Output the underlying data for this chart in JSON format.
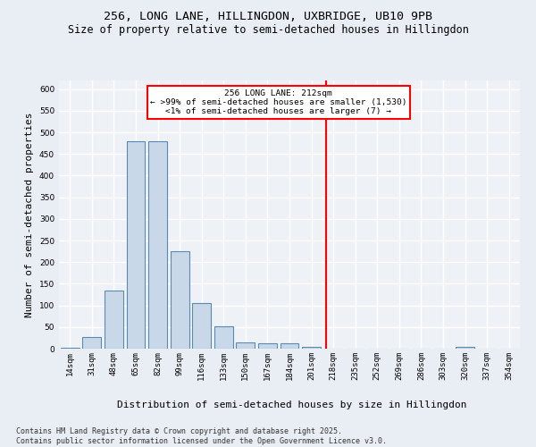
{
  "title_line1": "256, LONG LANE, HILLINGDON, UXBRIDGE, UB10 9PB",
  "title_line2": "Size of property relative to semi-detached houses in Hillingdon",
  "xlabel": "Distribution of semi-detached houses by size in Hillingdon",
  "ylabel": "Number of semi-detached properties",
  "footer": "Contains HM Land Registry data © Crown copyright and database right 2025.\nContains public sector information licensed under the Open Government Licence v3.0.",
  "categories": [
    "14sqm",
    "31sqm",
    "48sqm",
    "65sqm",
    "82sqm",
    "99sqm",
    "116sqm",
    "133sqm",
    "150sqm",
    "167sqm",
    "184sqm",
    "201sqm",
    "218sqm",
    "235sqm",
    "252sqm",
    "269sqm",
    "286sqm",
    "303sqm",
    "320sqm",
    "337sqm",
    "354sqm"
  ],
  "values": [
    2,
    27,
    135,
    480,
    480,
    225,
    105,
    52,
    14,
    12,
    12,
    5,
    0,
    1,
    0,
    0,
    0,
    0,
    4,
    0,
    1
  ],
  "bar_color": "#c8d8e8",
  "bar_edge_color": "#5a8ab0",
  "vline_color": "red",
  "annotation_title": "256 LONG LANE: 212sqm",
  "annotation_line2": "← >99% of semi-detached houses are smaller (1,530)",
  "annotation_line3": "<1% of semi-detached houses are larger (7) →",
  "ylim": [
    0,
    620
  ],
  "yticks": [
    0,
    50,
    100,
    150,
    200,
    250,
    300,
    350,
    400,
    450,
    500,
    550,
    600
  ],
  "bg_color": "#e8eef4",
  "plot_bg_color": "#eef2f7",
  "grid_color": "white",
  "title_fontsize": 9.5,
  "subtitle_fontsize": 8.5,
  "axis_label_fontsize": 8,
  "tick_fontsize": 6.5,
  "footer_fontsize": 6,
  "ann_fontsize": 6.8
}
